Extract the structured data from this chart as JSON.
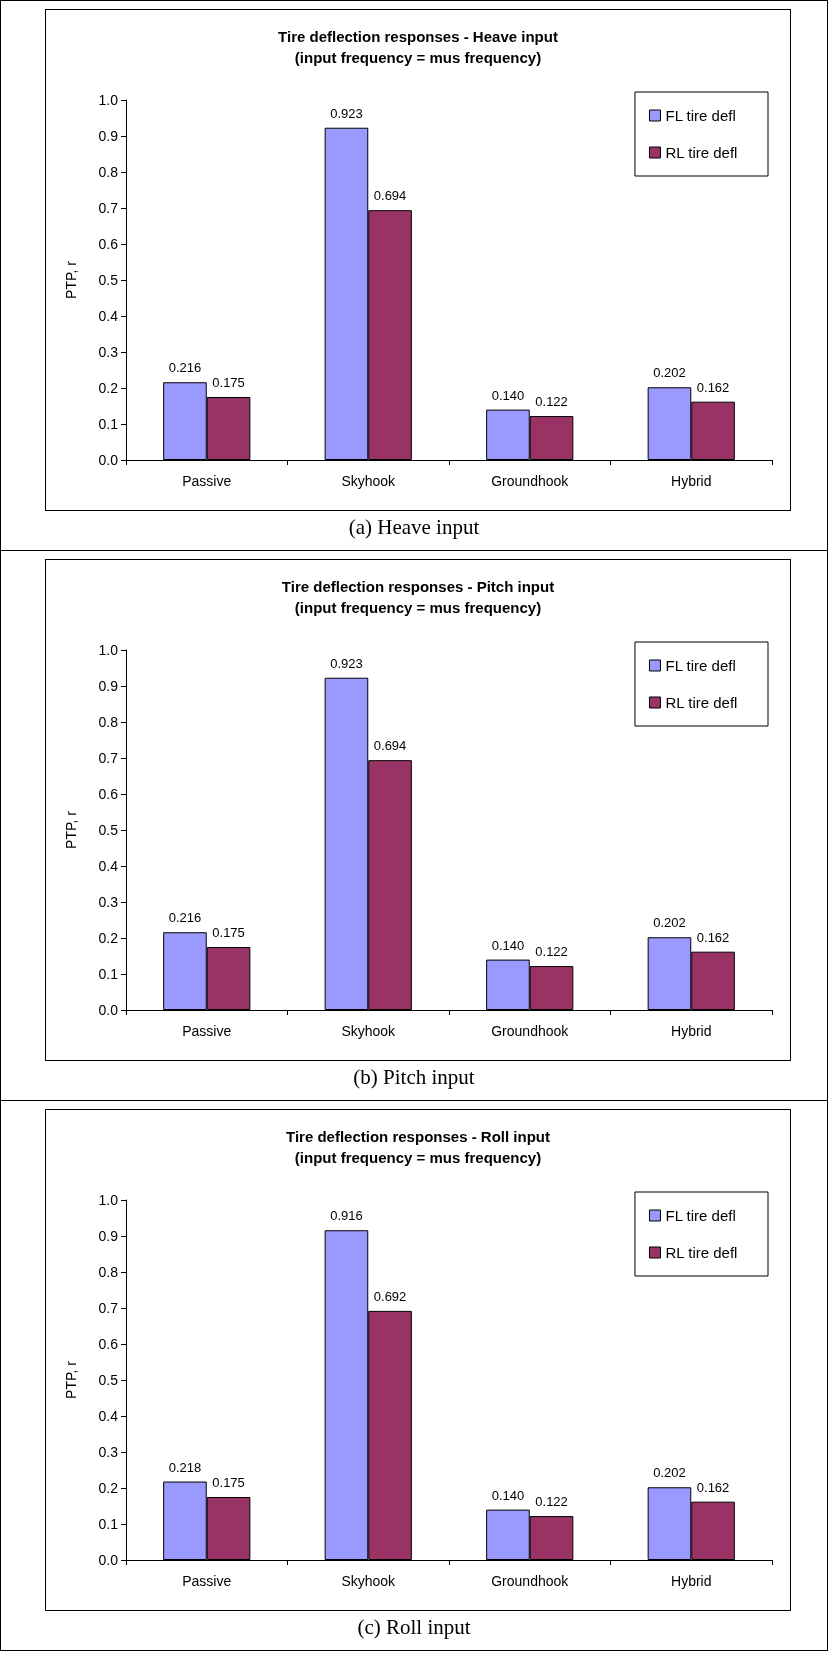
{
  "chart_data": [
    {
      "type": "bar",
      "title": "Tire deflection responses - Heave input",
      "subtitle": "(input frequency = mus frequency)",
      "ylabel": "PTP, r",
      "categories": [
        "Passive",
        "Skyhook",
        "Groundhook",
        "Hybrid"
      ],
      "series": [
        {
          "name": "FL tire defl",
          "color": "#9999ff",
          "values": [
            0.216,
            0.923,
            0.14,
            0.202
          ],
          "value_labels": [
            "0.216",
            "0.923",
            "0.140",
            "0.202"
          ]
        },
        {
          "name": "RL tire defl",
          "color": "#993366",
          "values": [
            0.175,
            0.694,
            0.122,
            0.162
          ],
          "value_labels": [
            "0.175",
            "0.694",
            "0.122",
            "0.162"
          ]
        }
      ],
      "ylim": [
        0,
        1
      ],
      "yticks": [
        {
          "value": 0,
          "label": "0.0"
        },
        {
          "value": 0.1,
          "label": "0.1"
        },
        {
          "value": 0.2,
          "label": "0.2"
        },
        {
          "value": 0.3,
          "label": "0.3"
        },
        {
          "value": 0.4,
          "label": "0.4"
        },
        {
          "value": 0.5,
          "label": "0.5"
        },
        {
          "value": 0.6,
          "label": "0.6"
        },
        {
          "value": 0.7,
          "label": "0.7"
        },
        {
          "value": 0.8,
          "label": "0.8"
        },
        {
          "value": 0.9,
          "label": "0.9"
        },
        {
          "value": 1,
          "label": "1.0"
        }
      ],
      "grid": false,
      "legend": "top right",
      "annotations": [
        "(a) Heave input"
      ]
    },
    {
      "type": "bar",
      "title": "Tire deflection responses - Pitch input",
      "subtitle": "(input frequency = mus frequency)",
      "ylabel": "PTP, r",
      "categories": [
        "Passive",
        "Skyhook",
        "Groundhook",
        "Hybrid"
      ],
      "series": [
        {
          "name": "FL tire defl",
          "color": "#9999ff",
          "values": [
            0.216,
            0.923,
            0.14,
            0.202
          ],
          "value_labels": [
            "0.216",
            "0.923",
            "0.140",
            "0.202"
          ]
        },
        {
          "name": "RL tire defl",
          "color": "#993366",
          "values": [
            0.175,
            0.694,
            0.122,
            0.162
          ],
          "value_labels": [
            "0.175",
            "0.694",
            "0.122",
            "0.162"
          ]
        }
      ],
      "ylim": [
        0,
        1
      ],
      "yticks": [
        {
          "value": 0,
          "label": "0.0"
        },
        {
          "value": 0.1,
          "label": "0.1"
        },
        {
          "value": 0.2,
          "label": "0.2"
        },
        {
          "value": 0.3,
          "label": "0.3"
        },
        {
          "value": 0.4,
          "label": "0.4"
        },
        {
          "value": 0.5,
          "label": "0.5"
        },
        {
          "value": 0.6,
          "label": "0.6"
        },
        {
          "value": 0.7,
          "label": "0.7"
        },
        {
          "value": 0.8,
          "label": "0.8"
        },
        {
          "value": 0.9,
          "label": "0.9"
        },
        {
          "value": 1,
          "label": "1.0"
        }
      ],
      "grid": false,
      "legend": "top right",
      "annotations": [
        "(b) Pitch input"
      ]
    },
    {
      "type": "bar",
      "title": "Tire deflection responses - Roll input",
      "subtitle": "(input frequency = mus frequency)",
      "ylabel": "PTP, r",
      "categories": [
        "Passive",
        "Skyhook",
        "Groundhook",
        "Hybrid"
      ],
      "series": [
        {
          "name": "FL tire defl",
          "color": "#9999ff",
          "values": [
            0.218,
            0.916,
            0.14,
            0.202
          ],
          "value_labels": [
            "0.218",
            "0.916",
            "0.140",
            "0.202"
          ]
        },
        {
          "name": "RL tire defl",
          "color": "#993366",
          "values": [
            0.175,
            0.692,
            0.122,
            0.162
          ],
          "value_labels": [
            "0.175",
            "0.692",
            "0.122",
            "0.162"
          ]
        }
      ],
      "ylim": [
        0,
        1
      ],
      "yticks": [
        {
          "value": 0,
          "label": "0.0"
        },
        {
          "value": 0.1,
          "label": "0.1"
        },
        {
          "value": 0.2,
          "label": "0.2"
        },
        {
          "value": 0.3,
          "label": "0.3"
        },
        {
          "value": 0.4,
          "label": "0.4"
        },
        {
          "value": 0.5,
          "label": "0.5"
        },
        {
          "value": 0.6,
          "label": "0.6"
        },
        {
          "value": 0.7,
          "label": "0.7"
        },
        {
          "value": 0.8,
          "label": "0.8"
        },
        {
          "value": 0.9,
          "label": "0.9"
        },
        {
          "value": 1,
          "label": "1.0"
        }
      ],
      "grid": false,
      "legend": "top right",
      "annotations": [
        "(c) Roll input"
      ]
    }
  ]
}
